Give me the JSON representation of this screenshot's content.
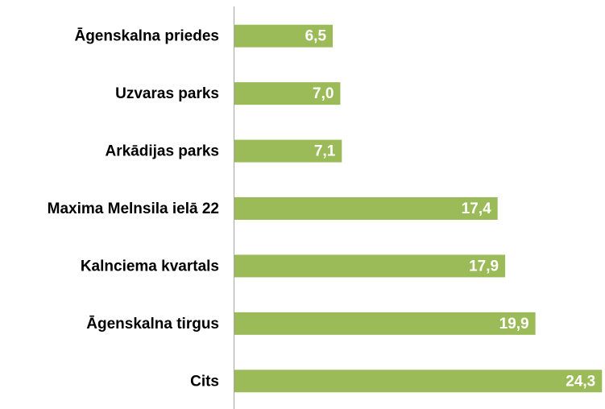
{
  "chart_data": {
    "type": "barh",
    "categories": [
      "Āgenskalna priedes",
      "Uzvaras parks",
      "Arkādijas parks",
      "Maxima Melnsila ielā 22",
      "Kalnciema kvartals",
      "Āgenskalna tirgus",
      "Cits"
    ],
    "values": [
      6.5,
      7.0,
      7.1,
      17.4,
      17.9,
      19.9,
      24.3
    ],
    "value_labels": [
      "6,5",
      "7,0",
      "7,1",
      "17,4",
      "17,9",
      "19,9",
      "24,3"
    ],
    "color": "#9bbb59",
    "xlim": [
      0,
      24.5
    ]
  }
}
